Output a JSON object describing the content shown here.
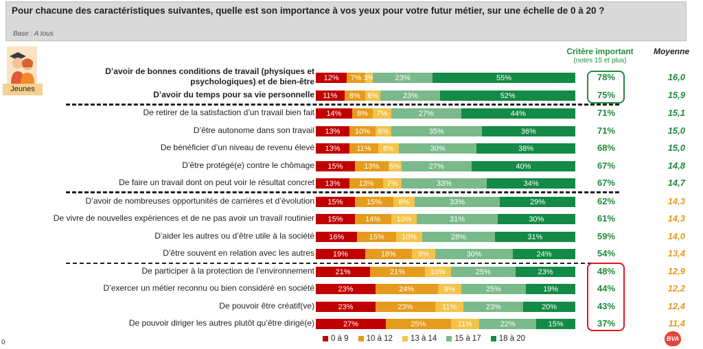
{
  "header": {
    "question": "Pour chacune des caractéristiques suivantes, quelle est son importance à vos yeux pour votre futur métier, sur une échelle de 0 à 20 ?",
    "base": "Base : A tous"
  },
  "avatar_label": "Jeunes",
  "columns": {
    "critere": "Critère important",
    "critere_sub": "(notes 15 et plus)",
    "moyenne": "Moyenne"
  },
  "colors": {
    "c0_9": "#c00000",
    "c10_12": "#e59b1d",
    "c13_14": "#f3c34a",
    "c15_17": "#7ab98a",
    "c18_20": "#138a45",
    "green_text": "#1f8a3a",
    "orange_text": "#e59b1d",
    "box_green": "#1f8a3a",
    "box_red": "#e0141f"
  },
  "legend": [
    "0 à 9",
    "10 à 12",
    "13 à 14",
    "15 à 17",
    "18 à 20"
  ],
  "page_number": "0",
  "logo_text": "BVA",
  "chart_data": {
    "type": "bar",
    "orientation": "horizontal-stacked-100",
    "series_names": [
      "0 à 9",
      "10 à 12",
      "13 à 14",
      "15 à 17",
      "18 à 20"
    ],
    "rows": [
      {
        "label": "D’avoir de bonnes conditions de travail (physiques et psychologiques) et de bien-être",
        "values": [
          12,
          7,
          3,
          23,
          55
        ],
        "labels": [
          "12%",
          "7%",
          "3%",
          "23%",
          "55%"
        ],
        "important": "78%",
        "moyenne": "16,0",
        "bold": true
      },
      {
        "label": "D’avoir du temps pour sa vie personnelle",
        "values": [
          11,
          8,
          6,
          23,
          52
        ],
        "labels": [
          "11%",
          "8%",
          "6%",
          "23%",
          "52%"
        ],
        "important": "75%",
        "moyenne": "15,9",
        "bold": true
      },
      {
        "label": "De retirer de la satisfaction d’un travail bien fait",
        "values": [
          14,
          8,
          7,
          27,
          44
        ],
        "labels": [
          "14%",
          "8%",
          "7%",
          "27%",
          "44%"
        ],
        "important": "71%",
        "moyenne": "15,1"
      },
      {
        "label": "D’être autonome dans son travail",
        "values": [
          13,
          10,
          6,
          35,
          36
        ],
        "labels": [
          "13%",
          "10%",
          "6%",
          "35%",
          "36%"
        ],
        "important": "71%",
        "moyenne": "15,0"
      },
      {
        "label": "De bénéficier d’un niveau de revenu élevé",
        "values": [
          13,
          11,
          8,
          30,
          38
        ],
        "labels": [
          "13%",
          "11%",
          "8%",
          "30%",
          "38%"
        ],
        "important": "68%",
        "moyenne": "15,0"
      },
      {
        "label": "D’être protégé(e) contre le chômage",
        "values": [
          15,
          13,
          5,
          27,
          40
        ],
        "labels": [
          "15%",
          "13%",
          "5%",
          "27%",
          "40%"
        ],
        "important": "67%",
        "moyenne": "14,8"
      },
      {
        "label": "De faire un travail dont on peut voir le résultat concret",
        "values": [
          13,
          13,
          7,
          33,
          34
        ],
        "labels": [
          "13%",
          "13%",
          "7%",
          "33%",
          "34%"
        ],
        "important": "67%",
        "moyenne": "14,7"
      },
      {
        "label": "D’avoir de nombreuses opportunités de carrières et d’évolution",
        "values": [
          15,
          15,
          8,
          33,
          29
        ],
        "labels": [
          "15%",
          "15%",
          "8%",
          "33%",
          "29%"
        ],
        "important": "62%",
        "moyenne": "14,3"
      },
      {
        "label": "De vivre de nouvelles expériences et de ne pas avoir un travail routinier",
        "values": [
          15,
          14,
          10,
          31,
          30
        ],
        "labels": [
          "15%",
          "14%",
          "10%",
          "31%",
          "30%"
        ],
        "important": "61%",
        "moyenne": "14,3"
      },
      {
        "label": "D’aider les autres ou d’être utile à la société",
        "values": [
          16,
          15,
          10,
          28,
          31
        ],
        "labels": [
          "16%",
          "15%",
          "10%",
          "28%",
          "31%"
        ],
        "important": "59%",
        "moyenne": "14,0"
      },
      {
        "label": "D’être souvent en relation avec les autres",
        "values": [
          19,
          18,
          9,
          30,
          24
        ],
        "labels": [
          "19%",
          "18%",
          "9%",
          "30%",
          "24%"
        ],
        "important": "54%",
        "moyenne": "13,4"
      },
      {
        "label": "De participer à la protection de l’environnement",
        "values": [
          21,
          21,
          10,
          25,
          23
        ],
        "labels": [
          "21%",
          "21%",
          "10%",
          "25%",
          "23%"
        ],
        "important": "48%",
        "moyenne": "12,9"
      },
      {
        "label": "D’exercer un métier reconnu ou bien considéré en société",
        "values": [
          23,
          24,
          9,
          25,
          19
        ],
        "labels": [
          "23%",
          "24%",
          "9%",
          "25%",
          "19%"
        ],
        "important": "44%",
        "moyenne": "12,2"
      },
      {
        "label": "De pouvoir être créatif(ve)",
        "values": [
          23,
          23,
          11,
          23,
          20
        ],
        "labels": [
          "23%",
          "23%",
          "11%",
          "23%",
          "20%"
        ],
        "important": "43%",
        "moyenne": "12,4"
      },
      {
        "label": "De pouvoir diriger les autres plutôt qu’être dirigé(e)",
        "values": [
          27,
          25,
          11,
          22,
          15
        ],
        "labels": [
          "27%",
          "25%",
          "11%",
          "22%",
          "15%"
        ],
        "important": "37%",
        "moyenne": "11,4"
      }
    ]
  }
}
